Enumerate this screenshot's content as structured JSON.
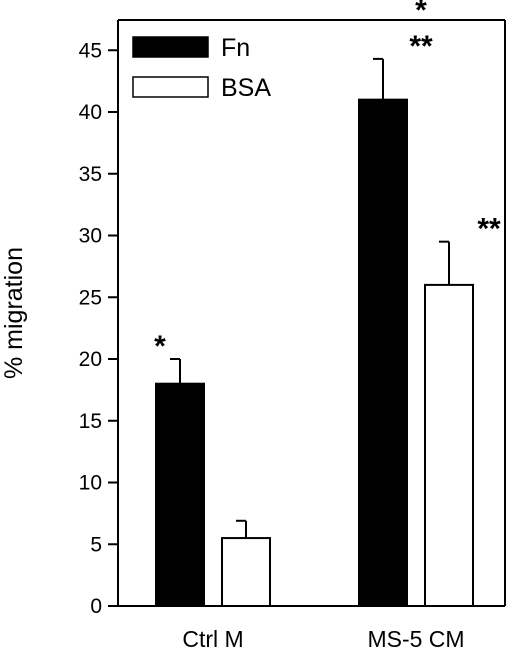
{
  "chart_data": {
    "type": "bar",
    "title": "",
    "xlabel": "",
    "ylabel": "% migration",
    "ylim": [
      0,
      45
    ],
    "yticks": [
      0,
      5,
      10,
      15,
      20,
      25,
      30,
      35,
      40,
      45
    ],
    "grid": false,
    "legend_position": "top-left",
    "categories": [
      "Ctrl M",
      "MS-5 CM"
    ],
    "series": [
      {
        "name": "Fn",
        "color": "#000000",
        "values": [
          18,
          41
        ],
        "errors": [
          2,
          3.3
        ],
        "annotations": [
          "*",
          "*\n**"
        ]
      },
      {
        "name": "BSA",
        "color": "#ffffff",
        "values": [
          5.5,
          26
        ],
        "errors": [
          1.4,
          3.5
        ],
        "annotations": [
          "",
          "**"
        ]
      }
    ]
  }
}
